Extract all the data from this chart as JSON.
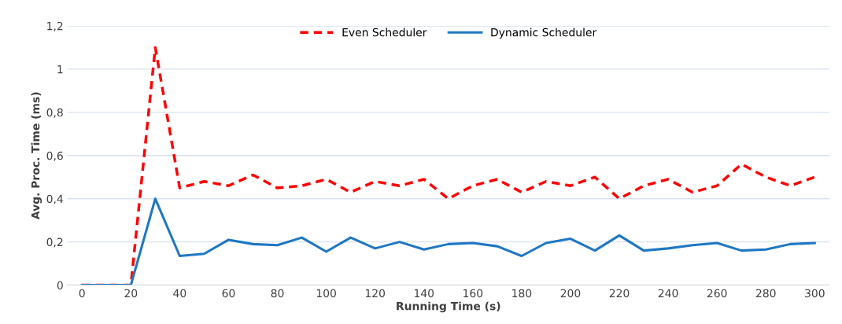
{
  "chart_data": {
    "type": "line",
    "xlabel": "Running Time (s)",
    "ylabel": "Avg. Proc. Time (ms)",
    "x": [
      0,
      10,
      20,
      30,
      40,
      50,
      60,
      70,
      80,
      90,
      100,
      110,
      120,
      130,
      140,
      150,
      160,
      170,
      180,
      190,
      200,
      210,
      220,
      230,
      240,
      250,
      260,
      270,
      280,
      290,
      300
    ],
    "series": [
      {
        "name": "Even Scheduler",
        "color": "#ff0000",
        "line_style": "dashed",
        "values": [
          0,
          0,
          0,
          1.1,
          0.45,
          0.48,
          0.46,
          0.51,
          0.45,
          0.46,
          0.49,
          0.43,
          0.48,
          0.46,
          0.49,
          0.4,
          0.46,
          0.49,
          0.43,
          0.48,
          0.46,
          0.5,
          0.4,
          0.46,
          0.49,
          0.43,
          0.46,
          0.56,
          0.5,
          0.46,
          0.5
        ]
      },
      {
        "name": "Dynamic Scheduler",
        "color": "#1f77c4",
        "line_style": "solid",
        "values": [
          0,
          0,
          0,
          0.4,
          0.135,
          0.145,
          0.21,
          0.19,
          0.185,
          0.22,
          0.155,
          0.22,
          0.17,
          0.2,
          0.165,
          0.19,
          0.195,
          0.18,
          0.135,
          0.195,
          0.215,
          0.16,
          0.23,
          0.16,
          0.17,
          0.185,
          0.195,
          0.16,
          0.165,
          0.19,
          0.195
        ]
      }
    ],
    "xlim": [
      -6,
      306
    ],
    "xticks": [
      0,
      20,
      40,
      60,
      80,
      100,
      120,
      140,
      160,
      180,
      200,
      220,
      240,
      260,
      280,
      300
    ],
    "ylim": [
      0,
      1.2
    ],
    "yticks": [
      {
        "value": 0,
        "label": "0"
      },
      {
        "value": 0.2,
        "label": "0,2"
      },
      {
        "value": 0.4,
        "label": "0,4"
      },
      {
        "value": 0.6,
        "label": "0,6"
      },
      {
        "value": 0.8,
        "label": "0,8"
      },
      {
        "value": 1,
        "label": "1"
      },
      {
        "value": 1.2,
        "label": "1,2"
      }
    ],
    "grid": "y",
    "legend": "top",
    "marker": "none"
  }
}
